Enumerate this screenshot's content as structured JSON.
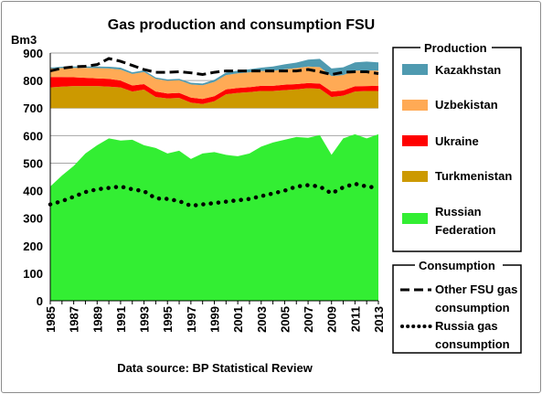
{
  "chart_data": {
    "type": "area",
    "title": "Gas production and consumption FSU",
    "ylabel": "Bm3",
    "xlabel": "",
    "source_note": "Data source: BP Statistical Review",
    "ylim": [
      0,
      900
    ],
    "y_ticks": [
      0,
      100,
      200,
      300,
      400,
      500,
      600,
      700,
      800,
      900
    ],
    "grid": "horizontal",
    "x": [
      1985,
      1986,
      1987,
      1988,
      1989,
      1990,
      1991,
      1992,
      1993,
      1994,
      1995,
      1996,
      1997,
      1998,
      1999,
      2000,
      2001,
      2002,
      2003,
      2004,
      2005,
      2006,
      2007,
      2008,
      2009,
      2010,
      2011,
      2012,
      2013
    ],
    "x_tick_labels": [
      "1985",
      "1987",
      "1989",
      "1991",
      "1993",
      "1995",
      "1997",
      "1999",
      "2001",
      "2003",
      "2005",
      "2007",
      "2009",
      "2011",
      "2013"
    ],
    "production_note": "Production areas are stacked: Russian Federation from 0; Turkmenistan, Ukraine, Uzbekistan and Kazakhstan stacked from 700",
    "production_series": [
      {
        "name": "Russian Federation",
        "color": "#33ee33",
        "values": [
          415,
          455,
          490,
          535,
          565,
          590,
          582,
          585,
          565,
          555,
          535,
          545,
          515,
          535,
          540,
          530,
          525,
          535,
          560,
          575,
          585,
          595,
          592,
          602,
          530,
          590,
          605,
          590,
          605
        ]
      },
      {
        "name": "Turkmenistan",
        "color": "#cc9900",
        "values": [
          75,
          78,
          80,
          80,
          80,
          78,
          75,
          60,
          67,
          40,
          35,
          37,
          20,
          15,
          25,
          50,
          55,
          58,
          62,
          62,
          65,
          68,
          72,
          70,
          40,
          45,
          60,
          62,
          62
        ]
      },
      {
        "name": "Ukraine",
        "color": "#ff0000",
        "values": [
          38,
          35,
          32,
          30,
          28,
          28,
          25,
          22,
          20,
          20,
          18,
          18,
          18,
          18,
          18,
          18,
          18,
          18,
          19,
          19,
          20,
          19,
          19,
          19,
          20,
          19,
          19,
          18,
          19
        ]
      },
      {
        "name": "Uzbekistan",
        "color": "#ffaa55",
        "values": [
          30,
          32,
          34,
          36,
          37,
          38,
          40,
          42,
          44,
          46,
          46,
          46,
          48,
          50,
          52,
          52,
          53,
          54,
          54,
          54,
          56,
          58,
          60,
          60,
          56,
          56,
          57,
          57,
          55
        ]
      },
      {
        "name": "Kazakhstan",
        "color": "#4f9ab0",
        "values": [
          4,
          5,
          5,
          5,
          6,
          6,
          7,
          6,
          6,
          5,
          5,
          5,
          6,
          6,
          8,
          9,
          10,
          11,
          12,
          16,
          18,
          20,
          25,
          30,
          28,
          28,
          30,
          32,
          30
        ]
      }
    ],
    "consumption_series": [
      {
        "name": "Other FSU gas consumption",
        "style": "dashed",
        "color": "#000000",
        "values": [
          835,
          845,
          850,
          852,
          858,
          880,
          870,
          855,
          840,
          830,
          830,
          832,
          828,
          822,
          830,
          835,
          835,
          835,
          835,
          835,
          835,
          835,
          840,
          832,
          822,
          830,
          832,
          832,
          825
        ]
      },
      {
        "name": "Russia gas consumption",
        "style": "dotted",
        "color": "#000000",
        "values": [
          350,
          362,
          378,
          395,
          405,
          410,
          415,
          405,
          398,
          372,
          370,
          362,
          345,
          350,
          355,
          360,
          365,
          370,
          380,
          390,
          400,
          415,
          420,
          415,
          390,
          412,
          425,
          415,
          410
        ]
      }
    ],
    "legend_production_title": "Production",
    "legend_consumption_title": "Consumption",
    "legend_production_labels": [
      "Kazakhstan",
      "Uzbekistan",
      "Ukraine",
      "Turkmenistan",
      "Russian",
      "Federation"
    ],
    "legend_consumption_labels": [
      "Other FSU gas",
      "consumption",
      "Russia gas",
      "consumption"
    ],
    "legend_placement": "right"
  }
}
